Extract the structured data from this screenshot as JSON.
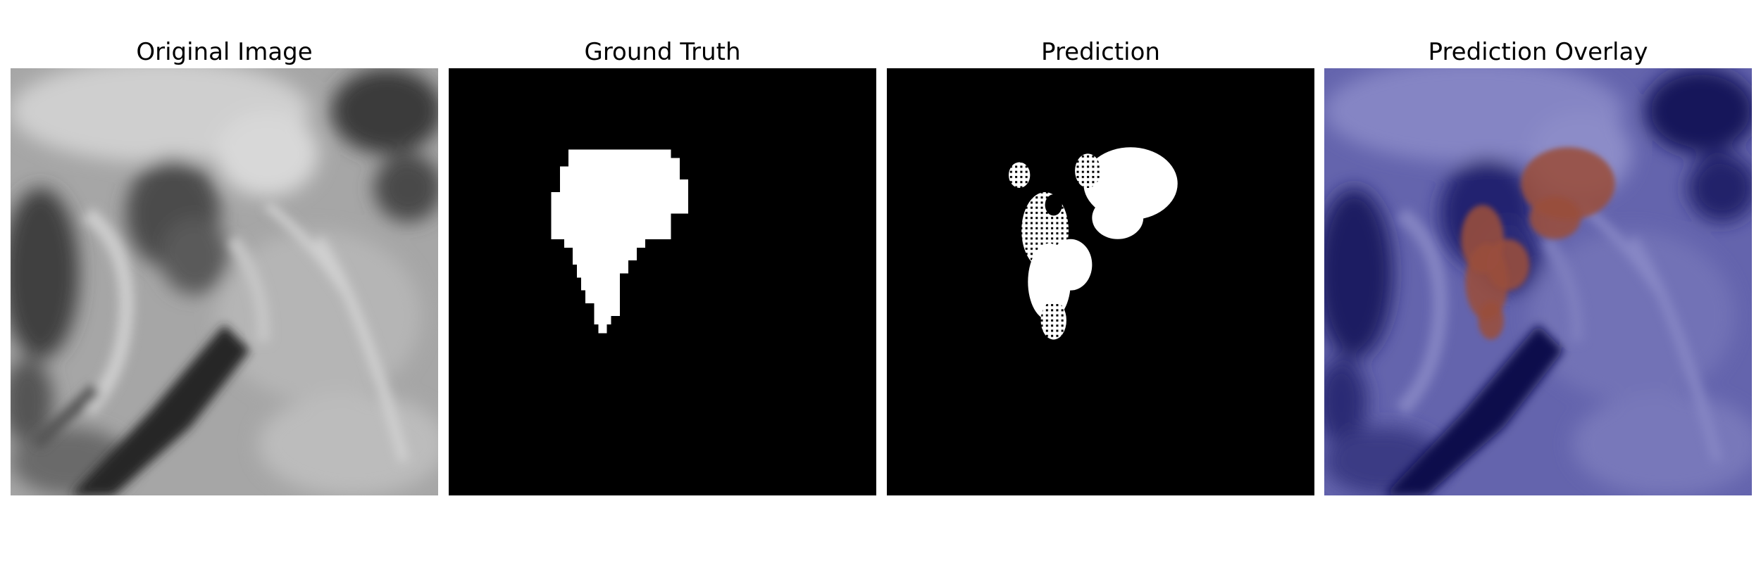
{
  "panels": [
    {
      "title": "Original Image"
    },
    {
      "title": "Ground Truth"
    },
    {
      "title": "Prediction"
    },
    {
      "title": "Prediction Overlay"
    }
  ],
  "colors": {
    "background": "#ffffff",
    "mask_foreground": "#ffffff",
    "mask_background": "#000000",
    "overlay_tint": "#2a2a8c",
    "overlay_prediction": "#9a4e3c"
  }
}
